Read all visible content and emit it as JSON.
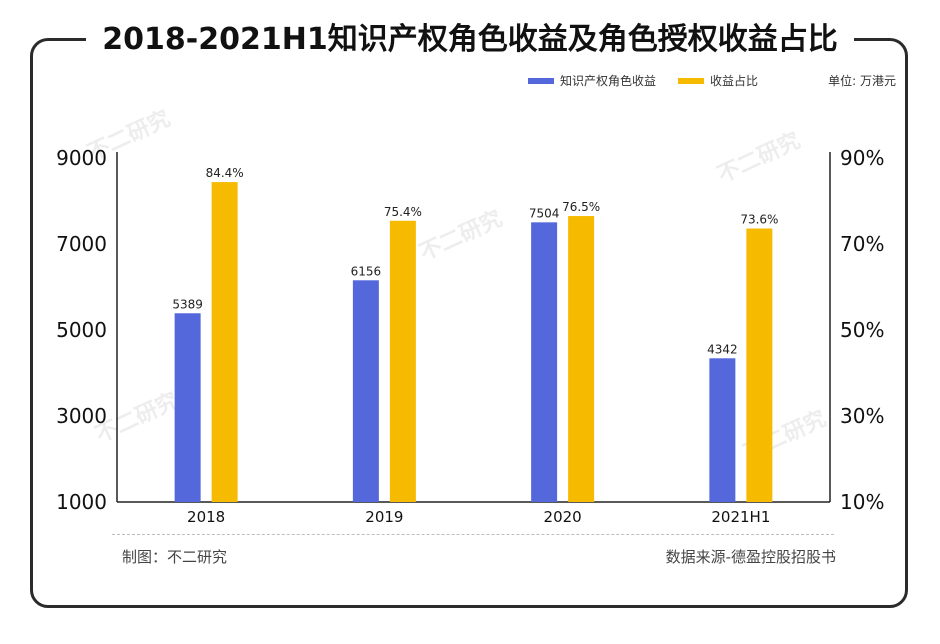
{
  "title": "2018-2021H1知识产权角色收益及角色授权收益占比",
  "unit": "单位: 万港元",
  "footer": {
    "credit": "制图：不二研究",
    "source": "数据来源-德盈控股招股书"
  },
  "watermark": "不二研究",
  "colors": {
    "primary": "#5468DC",
    "secondary": "#F6BB00"
  },
  "chart_data": {
    "type": "bar",
    "categories": [
      "2018",
      "2019",
      "2020",
      "2021H1"
    ],
    "series": [
      {
        "name": "知识产权角色收益",
        "axis": "left",
        "values": [
          5389,
          6156,
          7504,
          4342
        ],
        "labels": [
          "5389",
          "6156",
          "7504",
          "4342"
        ]
      },
      {
        "name": "收益占比",
        "axis": "right",
        "values": [
          84.4,
          75.4,
          76.5,
          73.6
        ],
        "labels": [
          "84.4%",
          "75.4%",
          "76.5%",
          "73.6%"
        ]
      }
    ],
    "y_left": {
      "ticks": [
        "9000",
        "7000",
        "5000",
        "3000",
        "1000"
      ],
      "range": [
        1000,
        9000
      ]
    },
    "y_right": {
      "ticks": [
        "90%",
        "70%",
        "50%",
        "30%",
        "10%"
      ],
      "range": [
        10,
        90
      ]
    },
    "legend_position": "top-right",
    "grid": false
  }
}
